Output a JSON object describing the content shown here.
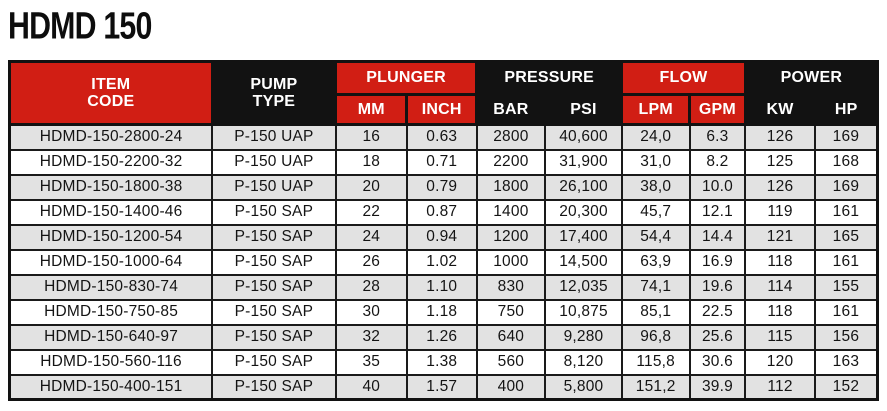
{
  "page": {
    "title": "HDMD 150"
  },
  "colors": {
    "accent_red": "#d11e14",
    "header_black": "#121212",
    "row_stripe_gray": "#e2e2e2",
    "row_white": "#ffffff",
    "border_black": "#1a1a1a",
    "text_dark": "#141414",
    "header_text": "#ffffff"
  },
  "table": {
    "group_headers": {
      "item_code": "ITEM\nCODE",
      "pump_type": "PUMP\nTYPE",
      "plunger": "PLUNGER",
      "pressure": "PRESSURE",
      "flow": "FLOW",
      "power": "POWER"
    },
    "sub_headers": {
      "mm": "MM",
      "inch": "INCH",
      "bar": "BAR",
      "psi": "PSI",
      "lpm": "LPM",
      "gpm": "GPM",
      "kw": "KW",
      "hp": "HP"
    },
    "column_keys": [
      "item_code",
      "pump_type",
      "mm",
      "inch",
      "bar",
      "psi",
      "lpm",
      "gpm",
      "kw",
      "hp"
    ],
    "rows": [
      [
        "HDMD-150-2800-24",
        "P-150 UAP",
        "16",
        "0.63",
        "2800",
        "40,600",
        "24,0",
        "6.3",
        "126",
        "169"
      ],
      [
        "HDMD-150-2200-32",
        "P-150 UAP",
        "18",
        "0.71",
        "2200",
        "31,900",
        "31,0",
        "8.2",
        "125",
        "168"
      ],
      [
        "HDMD-150-1800-38",
        "P-150 UAP",
        "20",
        "0.79",
        "1800",
        "26,100",
        "38,0",
        "10.0",
        "126",
        "169"
      ],
      [
        "HDMD-150-1400-46",
        "P-150 SAP",
        "22",
        "0.87",
        "1400",
        "20,300",
        "45,7",
        "12.1",
        "119",
        "161"
      ],
      [
        "HDMD-150-1200-54",
        "P-150 SAP",
        "24",
        "0.94",
        "1200",
        "17,400",
        "54,4",
        "14.4",
        "121",
        "165"
      ],
      [
        "HDMD-150-1000-64",
        "P-150 SAP",
        "26",
        "1.02",
        "1000",
        "14,500",
        "63,9",
        "16.9",
        "118",
        "161"
      ],
      [
        "HDMD-150-830-74",
        "P-150 SAP",
        "28",
        "1.10",
        "830",
        "12,035",
        "74,1",
        "19.6",
        "114",
        "155"
      ],
      [
        "HDMD-150-750-85",
        "P-150 SAP",
        "30",
        "1.18",
        "750",
        "10,875",
        "85,1",
        "22.5",
        "118",
        "161"
      ],
      [
        "HDMD-150-640-97",
        "P-150 SAP",
        "32",
        "1.26",
        "640",
        "9,280",
        "96,8",
        "25.6",
        "115",
        "156"
      ],
      [
        "HDMD-150-560-116",
        "P-150 SAP",
        "35",
        "1.38",
        "560",
        "8,120",
        "115,8",
        "30.6",
        "120",
        "163"
      ],
      [
        "HDMD-150-400-151",
        "P-150 SAP",
        "40",
        "1.57",
        "400",
        "5,800",
        "151,2",
        "39.9",
        "112",
        "152"
      ]
    ]
  }
}
